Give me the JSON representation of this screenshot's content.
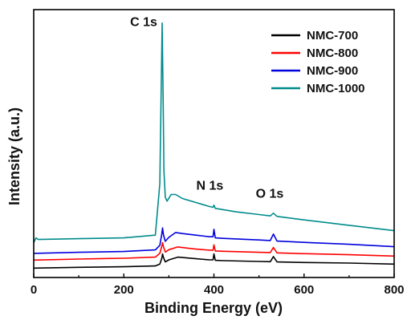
{
  "chart_data": {
    "type": "line",
    "title": "",
    "xlabel": "Binding Energy (eV)",
    "ylabel": "Intensity (a.u.)",
    "xlim": [
      0,
      800
    ],
    "ylim": [
      0,
      100
    ],
    "x_ticks": [
      0,
      200,
      400,
      600,
      800
    ],
    "y_ticks_shown": false,
    "legend_position": "top-right",
    "annotations": [
      {
        "text": "C 1s",
        "x": 285,
        "y": 95
      },
      {
        "text": "N 1s",
        "x": 400,
        "y": 31
      },
      {
        "text": "O 1s",
        "x": 532,
        "y": 28
      }
    ],
    "series": [
      {
        "name": "NMC-700",
        "color": "#000000",
        "points": [
          [
            0,
            3.5
          ],
          [
            100,
            3.8
          ],
          [
            200,
            4.0
          ],
          [
            270,
            4.3
          ],
          [
            280,
            5.0
          ],
          [
            284,
            7.0
          ],
          [
            286,
            8.8
          ],
          [
            288,
            7.5
          ],
          [
            292,
            5.8
          ],
          [
            300,
            6.6
          ],
          [
            320,
            7.6
          ],
          [
            340,
            7.3
          ],
          [
            360,
            7.0
          ],
          [
            390,
            6.6
          ],
          [
            398,
            6.6
          ],
          [
            400,
            8.8
          ],
          [
            403,
            6.4
          ],
          [
            420,
            6.3
          ],
          [
            500,
            6.0
          ],
          [
            525,
            5.9
          ],
          [
            532,
            7.8
          ],
          [
            540,
            5.8
          ],
          [
            600,
            5.6
          ],
          [
            700,
            5.4
          ],
          [
            800,
            5.0
          ]
        ]
      },
      {
        "name": "NMC-800",
        "color": "#ff0000",
        "points": [
          [
            0,
            6.5
          ],
          [
            100,
            6.9
          ],
          [
            200,
            7.2
          ],
          [
            270,
            7.6
          ],
          [
            280,
            9.0
          ],
          [
            284,
            11.5
          ],
          [
            286,
            13.0
          ],
          [
            288,
            11.5
          ],
          [
            292,
            9.5
          ],
          [
            300,
            10.4
          ],
          [
            320,
            11.4
          ],
          [
            340,
            11.0
          ],
          [
            360,
            10.6
          ],
          [
            390,
            10.2
          ],
          [
            398,
            10.2
          ],
          [
            400,
            12.2
          ],
          [
            403,
            9.9
          ],
          [
            420,
            9.8
          ],
          [
            500,
            9.4
          ],
          [
            525,
            9.3
          ],
          [
            532,
            11.2
          ],
          [
            540,
            9.2
          ],
          [
            600,
            8.9
          ],
          [
            700,
            8.5
          ],
          [
            800,
            8.0
          ]
        ]
      },
      {
        "name": "NMC-900",
        "color": "#0000dd",
        "points": [
          [
            0,
            9.0
          ],
          [
            100,
            9.4
          ],
          [
            200,
            9.7
          ],
          [
            270,
            10.3
          ],
          [
            280,
            12.0
          ],
          [
            284,
            16.0
          ],
          [
            286,
            18.5
          ],
          [
            288,
            16.0
          ],
          [
            292,
            13.5
          ],
          [
            300,
            15.0
          ],
          [
            315,
            16.8
          ],
          [
            330,
            16.4
          ],
          [
            360,
            15.8
          ],
          [
            390,
            15.2
          ],
          [
            398,
            15.2
          ],
          [
            400,
            18.0
          ],
          [
            403,
            14.8
          ],
          [
            420,
            14.6
          ],
          [
            500,
            14.0
          ],
          [
            525,
            13.8
          ],
          [
            532,
            16.2
          ],
          [
            540,
            13.6
          ],
          [
            600,
            13.1
          ],
          [
            700,
            12.4
          ],
          [
            800,
            11.5
          ]
        ]
      },
      {
        "name": "NMC-1000",
        "color": "#008b8b",
        "points": [
          [
            0,
            13.0
          ],
          [
            5,
            14.8
          ],
          [
            10,
            14.2
          ],
          [
            100,
            14.5
          ],
          [
            200,
            14.8
          ],
          [
            270,
            15.8
          ],
          [
            280,
            35.0
          ],
          [
            283,
            70.0
          ],
          [
            285,
            95.0
          ],
          [
            287,
            70.0
          ],
          [
            289,
            40.0
          ],
          [
            292,
            30.0
          ],
          [
            296,
            28.5
          ],
          [
            305,
            31.0
          ],
          [
            315,
            31.0
          ],
          [
            330,
            29.5
          ],
          [
            360,
            28.0
          ],
          [
            390,
            26.5
          ],
          [
            398,
            26.2
          ],
          [
            400,
            27.0
          ],
          [
            403,
            25.8
          ],
          [
            450,
            24.5
          ],
          [
            500,
            23.5
          ],
          [
            525,
            23.0
          ],
          [
            532,
            24.0
          ],
          [
            540,
            22.8
          ],
          [
            600,
            21.5
          ],
          [
            700,
            19.5
          ],
          [
            800,
            17.5
          ]
        ]
      }
    ]
  }
}
